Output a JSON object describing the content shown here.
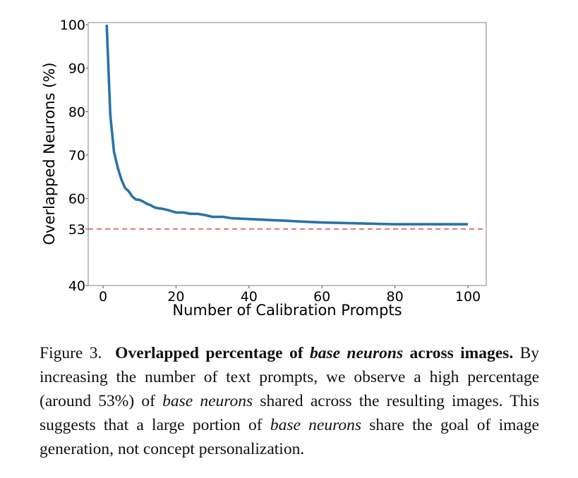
{
  "chart_data": {
    "type": "line",
    "title": "",
    "xlabel": "Number of Calibration Prompts",
    "ylabel": "Overlapped Neurons (%)",
    "xlim": [
      -3,
      105
    ],
    "ylim": [
      40,
      100.5
    ],
    "xticks": [
      0,
      20,
      40,
      60,
      80,
      100
    ],
    "yticks": [
      40,
      53,
      60,
      70,
      80,
      90,
      100
    ],
    "grid": false,
    "series": [
      {
        "name": "Overlapped Neurons",
        "color": "#2a72a6",
        "x": [
          1,
          2,
          3,
          4,
          5,
          6,
          7,
          8,
          9,
          10,
          11,
          12,
          13,
          14,
          15,
          16,
          18,
          20,
          22,
          24,
          26,
          28,
          30,
          33,
          35,
          40,
          45,
          50,
          55,
          60,
          65,
          70,
          75,
          80,
          85,
          90,
          95,
          100
        ],
        "y": [
          100,
          79.2,
          70.8,
          67.2,
          64.5,
          62.5,
          61.7,
          60.5,
          59.8,
          59.7,
          59.3,
          58.8,
          58.5,
          58.0,
          57.8,
          57.7,
          57.3,
          56.8,
          56.8,
          56.5,
          56.5,
          56.2,
          55.8,
          55.8,
          55.5,
          55.3,
          55.1,
          54.9,
          54.7,
          54.5,
          54.4,
          54.3,
          54.2,
          54.1,
          54.1,
          54.1,
          54.1,
          54.1
        ]
      }
    ],
    "reference_line": {
      "y": 53,
      "color": "#d62728",
      "style": "dashed"
    }
  },
  "caption": {
    "figure_label": "Figure 3.",
    "bold_1": "Overlapped percentage of",
    "bold_italic": "base neurons",
    "bold_2": "across images.",
    "text_1": "By increasing the number of text prompts, we observe a high percentage (around 53%) of",
    "italic_1": "base neurons",
    "text_2": "shared across the resulting images.  This suggests that a large portion of",
    "italic_2": "base neurons",
    "text_3": "share the goal of image generation, not concept personalization."
  }
}
